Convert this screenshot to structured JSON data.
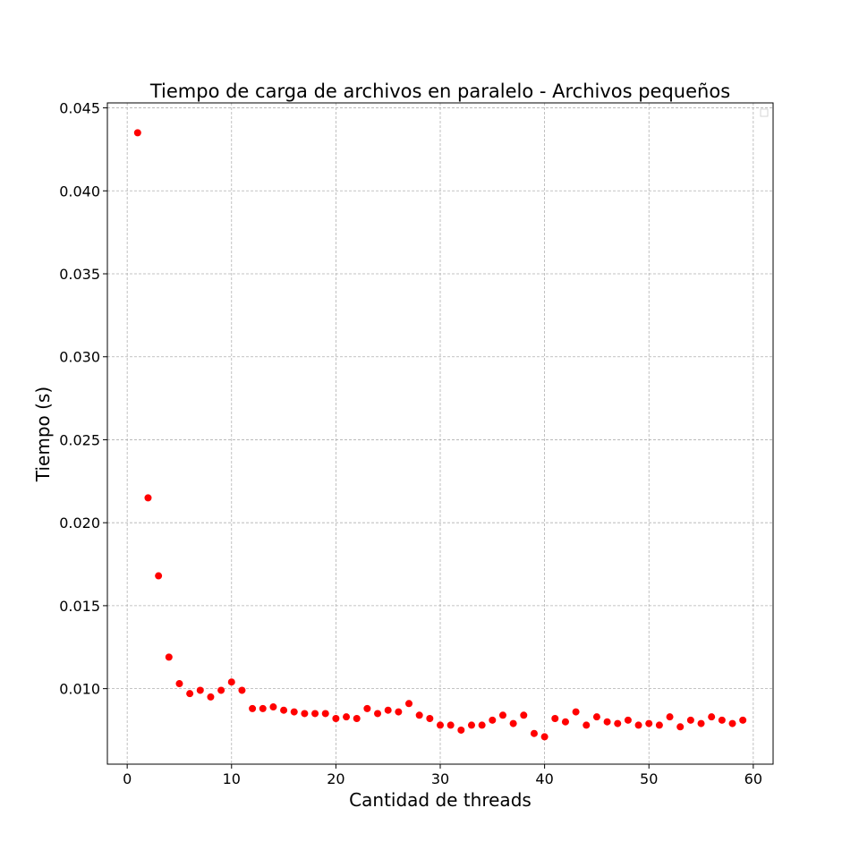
{
  "chart_data": {
    "type": "scatter",
    "title": "Tiempo de carga de archivos en paralelo - Archivos pequeños",
    "xlabel": "Cantidad de threads",
    "ylabel": "Tiempo (s)",
    "xlim": [
      -1.9,
      61.9
    ],
    "ylim": [
      0.00545,
      0.0453
    ],
    "xticks": [
      0,
      10,
      20,
      30,
      40,
      50,
      60
    ],
    "xtick_labels": [
      "0",
      "10",
      "20",
      "30",
      "40",
      "50",
      "60"
    ],
    "yticks": [
      0.01,
      0.015,
      0.02,
      0.025,
      0.03,
      0.035,
      0.04,
      0.045
    ],
    "ytick_labels": [
      "0.010",
      "0.015",
      "0.020",
      "0.025",
      "0.030",
      "0.035",
      "0.040",
      "0.045"
    ],
    "grid": true,
    "marker_color": "#ff0000",
    "x": [
      1,
      2,
      3,
      4,
      5,
      6,
      7,
      8,
      9,
      10,
      11,
      12,
      13,
      14,
      15,
      16,
      17,
      18,
      19,
      20,
      21,
      22,
      23,
      24,
      25,
      26,
      27,
      28,
      29,
      30,
      31,
      32,
      33,
      34,
      35,
      36,
      37,
      38,
      39,
      40,
      41,
      42,
      43,
      44,
      45,
      46,
      47,
      48,
      49,
      50,
      51,
      52,
      53,
      54,
      55,
      56,
      57,
      58,
      59
    ],
    "y": [
      0.0435,
      0.0215,
      0.0168,
      0.0119,
      0.0103,
      0.0097,
      0.0099,
      0.0095,
      0.0099,
      0.0104,
      0.0099,
      0.0088,
      0.0088,
      0.0089,
      0.0087,
      0.0086,
      0.0085,
      0.0085,
      0.0085,
      0.0082,
      0.0083,
      0.0082,
      0.0088,
      0.0085,
      0.0087,
      0.0086,
      0.0091,
      0.0084,
      0.0082,
      0.0078,
      0.0078,
      0.0075,
      0.0078,
      0.0078,
      0.0081,
      0.0084,
      0.0079,
      0.0084,
      0.0073,
      0.0071,
      0.0082,
      0.008,
      0.0086,
      0.0078,
      0.0083,
      0.008,
      0.0079,
      0.0081,
      0.0078,
      0.0079,
      0.0078,
      0.0083,
      0.0077,
      0.0081,
      0.0079,
      0.0083,
      0.0081,
      0.0079,
      0.0081
    ]
  }
}
